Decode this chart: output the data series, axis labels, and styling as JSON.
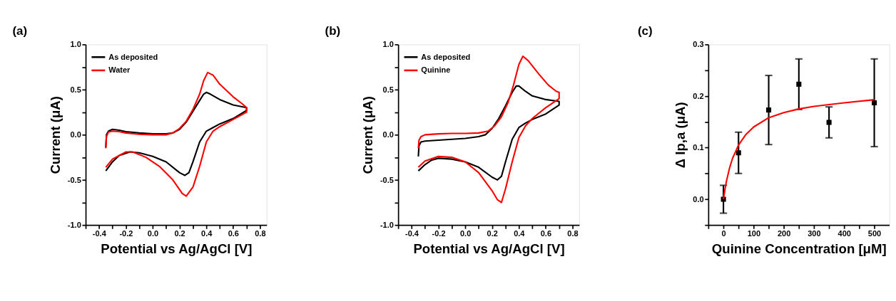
{
  "chart_data": [
    {
      "type": "line",
      "title": "(a)",
      "xlabel": "Potential vs Ag/AgCl [V]",
      "ylabel": "Current (μA)",
      "xlim": [
        -0.5,
        0.85
      ],
      "ylim": [
        -1.0,
        1.0
      ],
      "xticks": [
        {
          "value": -0.5,
          "label": null
        },
        -0.4,
        {
          "value": -0.3,
          "label": null
        },
        -0.2,
        {
          "value": -0.1,
          "label": null
        },
        {
          "value": 0,
          "label": "0.0"
        },
        {
          "value": 0.1,
          "label": null
        },
        0.2,
        {
          "value": 0.3,
          "label": null
        },
        0.4,
        {
          "value": 0.5,
          "label": null
        },
        0.6,
        {
          "value": 0.7,
          "label": null
        },
        0.8
      ],
      "yticks": [
        {
          "value": -1,
          "label": "-1.0"
        },
        {
          "value": -0.75,
          "label": null
        },
        -0.5,
        {
          "value": -0.25,
          "label": null
        },
        {
          "value": 0,
          "label": "0.0"
        },
        {
          "value": 0.25,
          "label": null
        },
        0.5,
        {
          "value": 0.75,
          "label": null
        },
        {
          "value": 1,
          "label": "1.0"
        }
      ],
      "grid": false,
      "legend": "top left",
      "line_style": "solid",
      "marker": "none",
      "series": [
        {
          "name": "As deposited",
          "color": "#000000",
          "x": [
            -0.35,
            -0.345,
            -0.33,
            -0.3,
            -0.25,
            -0.2,
            -0.1,
            0.0,
            0.1,
            0.15,
            0.2,
            0.25,
            0.3,
            0.35,
            0.38,
            0.4,
            0.43,
            0.5,
            0.6,
            0.7,
            0.7,
            0.6,
            0.5,
            0.45,
            0.4,
            0.35,
            0.3,
            0.27,
            0.24,
            0.2,
            0.1,
            0.0,
            -0.1,
            -0.17,
            -0.25,
            -0.3,
            -0.35
          ],
          "values": [
            -0.14,
            0.0,
            0.04,
            0.06,
            0.05,
            0.035,
            0.02,
            0.01,
            0.01,
            0.02,
            0.06,
            0.14,
            0.26,
            0.38,
            0.45,
            0.47,
            0.45,
            0.39,
            0.33,
            0.3,
            0.27,
            0.18,
            0.12,
            0.08,
            0.04,
            -0.08,
            -0.3,
            -0.42,
            -0.45,
            -0.42,
            -0.3,
            -0.24,
            -0.2,
            -0.19,
            -0.23,
            -0.3,
            -0.4
          ]
        },
        {
          "name": "Water",
          "color": "#ff0000",
          "x": [
            -0.35,
            -0.345,
            -0.33,
            -0.3,
            -0.25,
            -0.2,
            -0.1,
            0.0,
            0.1,
            0.15,
            0.2,
            0.25,
            0.3,
            0.35,
            0.38,
            0.41,
            0.45,
            0.5,
            0.6,
            0.67,
            0.7,
            0.7,
            0.6,
            0.5,
            0.45,
            0.4,
            0.35,
            0.3,
            0.25,
            0.22,
            0.15,
            0.05,
            -0.05,
            -0.15,
            -0.2,
            -0.3,
            -0.35
          ],
          "values": [
            -0.15,
            -0.02,
            0.03,
            0.04,
            0.035,
            0.02,
            0.005,
            0.0,
            0.0,
            0.02,
            0.07,
            0.15,
            0.28,
            0.45,
            0.6,
            0.69,
            0.66,
            0.56,
            0.42,
            0.34,
            0.3,
            0.25,
            0.17,
            0.09,
            0.04,
            -0.08,
            -0.35,
            -0.58,
            -0.68,
            -0.65,
            -0.5,
            -0.35,
            -0.25,
            -0.19,
            -0.19,
            -0.27,
            -0.36
          ]
        }
      ]
    },
    {
      "type": "line",
      "title": "(b)",
      "xlabel": "Potential vs Ag/AgCl [V]",
      "ylabel": "Current (μA)",
      "xlim": [
        -0.5,
        0.85
      ],
      "ylim": [
        -1.0,
        1.0
      ],
      "xticks": [
        {
          "value": -0.5,
          "label": null
        },
        -0.4,
        {
          "value": -0.3,
          "label": null
        },
        -0.2,
        {
          "value": -0.1,
          "label": null
        },
        {
          "value": 0,
          "label": "0.0"
        },
        {
          "value": 0.1,
          "label": null
        },
        0.2,
        {
          "value": 0.3,
          "label": null
        },
        0.4,
        {
          "value": 0.5,
          "label": null
        },
        0.6,
        {
          "value": 0.7,
          "label": null
        },
        0.8
      ],
      "yticks": [
        {
          "value": -1,
          "label": "-1.0"
        },
        {
          "value": -0.75,
          "label": null
        },
        -0.5,
        {
          "value": -0.25,
          "label": null
        },
        {
          "value": 0,
          "label": "0.0"
        },
        {
          "value": 0.25,
          "label": null
        },
        0.5,
        {
          "value": 0.75,
          "label": null
        },
        {
          "value": 1,
          "label": "1.0"
        }
      ],
      "grid": false,
      "legend": "top left",
      "line_style": "solid",
      "marker": "none",
      "series": [
        {
          "name": "As deposited",
          "color": "#000000",
          "x": [
            -0.35,
            -0.345,
            -0.33,
            -0.3,
            -0.2,
            -0.1,
            0.0,
            0.1,
            0.15,
            0.2,
            0.25,
            0.3,
            0.35,
            0.38,
            0.4,
            0.45,
            0.5,
            0.6,
            0.7,
            0.7,
            0.6,
            0.5,
            0.45,
            0.4,
            0.35,
            0.3,
            0.27,
            0.24,
            0.2,
            0.1,
            0.0,
            -0.1,
            -0.2,
            -0.25,
            -0.3,
            -0.35
          ],
          "values": [
            -0.24,
            -0.12,
            -0.08,
            -0.07,
            -0.06,
            -0.05,
            -0.04,
            -0.02,
            0.0,
            0.07,
            0.18,
            0.32,
            0.47,
            0.54,
            0.54,
            0.48,
            0.43,
            0.39,
            0.37,
            0.33,
            0.23,
            0.17,
            0.13,
            0.08,
            -0.05,
            -0.3,
            -0.46,
            -0.5,
            -0.47,
            -0.36,
            -0.3,
            -0.27,
            -0.26,
            -0.28,
            -0.33,
            -0.4
          ]
        },
        {
          "name": "Quinine",
          "color": "#ff0000",
          "x": [
            -0.35,
            -0.345,
            -0.33,
            -0.3,
            -0.2,
            -0.1,
            0.0,
            0.1,
            0.17,
            0.22,
            0.27,
            0.32,
            0.36,
            0.4,
            0.43,
            0.47,
            0.55,
            0.62,
            0.68,
            0.7,
            0.7,
            0.6,
            0.5,
            0.45,
            0.4,
            0.35,
            0.3,
            0.27,
            0.24,
            0.2,
            0.1,
            0.0,
            -0.1,
            -0.2,
            -0.3,
            -0.35
          ],
          "values": [
            -0.15,
            -0.06,
            -0.02,
            0.0,
            0.01,
            0.015,
            0.015,
            0.02,
            0.04,
            0.1,
            0.2,
            0.36,
            0.55,
            0.78,
            0.87,
            0.82,
            0.67,
            0.55,
            0.48,
            0.47,
            0.4,
            0.3,
            0.18,
            0.1,
            -0.03,
            -0.3,
            -0.6,
            -0.75,
            -0.72,
            -0.62,
            -0.42,
            -0.3,
            -0.25,
            -0.24,
            -0.29,
            -0.36
          ]
        }
      ]
    },
    {
      "type": "scatter",
      "title": "(c)",
      "xlabel": "Quinine Concentration [μM]",
      "ylabel": "Δ Ip,a (μA)",
      "xlim": [
        -50,
        550
      ],
      "ylim": [
        -0.05,
        0.3
      ],
      "xticks": [
        {
          "value": -50,
          "label": null
        },
        0,
        {
          "value": 50,
          "label": null
        },
        100,
        {
          "value": 150,
          "label": null
        },
        200,
        {
          "value": 250,
          "label": null
        },
        300,
        {
          "value": 350,
          "label": null
        },
        400,
        {
          "value": 450,
          "label": null
        },
        500
      ],
      "yticks": [
        {
          "value": -0.05,
          "label": null
        },
        {
          "value": 0,
          "label": "0.0"
        },
        {
          "value": 0.05,
          "label": null
        },
        0.1,
        {
          "value": 0.15,
          "label": null
        },
        0.2,
        {
          "value": 0.25,
          "label": null
        },
        0.3
      ],
      "grid": false,
      "legend": false,
      "marker": "square",
      "series": [
        {
          "color": "#000000",
          "x": [
            0,
            50,
            150,
            250,
            350,
            500
          ],
          "values": [
            0.0,
            0.09,
            0.173,
            0.223,
            0.149,
            0.187
          ],
          "errors": [
            0.027,
            0.04,
            0.067,
            0.049,
            0.03,
            0.085
          ]
        },
        {
          "type": "line",
          "marker": "none",
          "color": "#ff0000",
          "x": [
            0,
            5,
            10,
            20,
            30,
            50,
            75,
            100,
            150,
            200,
            250,
            300,
            400,
            500
          ],
          "values": [
            0.0,
            0.019,
            0.035,
            0.06,
            0.079,
            0.105,
            0.126,
            0.14,
            0.158,
            0.168,
            0.175,
            0.18,
            0.187,
            0.193
          ]
        }
      ]
    }
  ]
}
